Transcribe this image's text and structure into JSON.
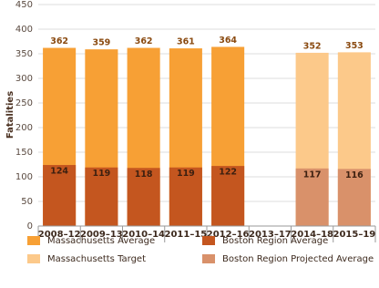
{
  "chart_data": {
    "type": "bar",
    "y_label": "Fatalities",
    "categories": [
      "2008–12",
      "2009–13",
      "2010–14",
      "2011–15",
      "2012–16",
      "2013–17",
      "2014–18",
      "2015–19"
    ],
    "series": [
      {
        "name": "Massachusetts Average",
        "color": "#f7a035",
        "label_color": "#8a4a10",
        "values": [
          362,
          359,
          362,
          361,
          364,
          null,
          null,
          null
        ]
      },
      {
        "name": "Boston Region Average",
        "color": "#c4561f",
        "label_color": "#3d2010",
        "values": [
          124,
          119,
          118,
          119,
          122,
          null,
          null,
          null
        ]
      },
      {
        "name": "Massachusetts Target",
        "color": "#fcc98a",
        "label_color": "#8a4a10",
        "values": [
          null,
          null,
          null,
          null,
          null,
          null,
          352,
          353
        ]
      },
      {
        "name": "Boston Region Projected Average",
        "color": "#d9916a",
        "label_color": "#3d2010",
        "values": [
          null,
          null,
          null,
          null,
          null,
          null,
          117,
          116
        ]
      }
    ],
    "ylim": [
      0,
      450
    ],
    "yticks": [
      0,
      50,
      100,
      150,
      200,
      250,
      300,
      350,
      400,
      450
    ],
    "grid": true
  }
}
